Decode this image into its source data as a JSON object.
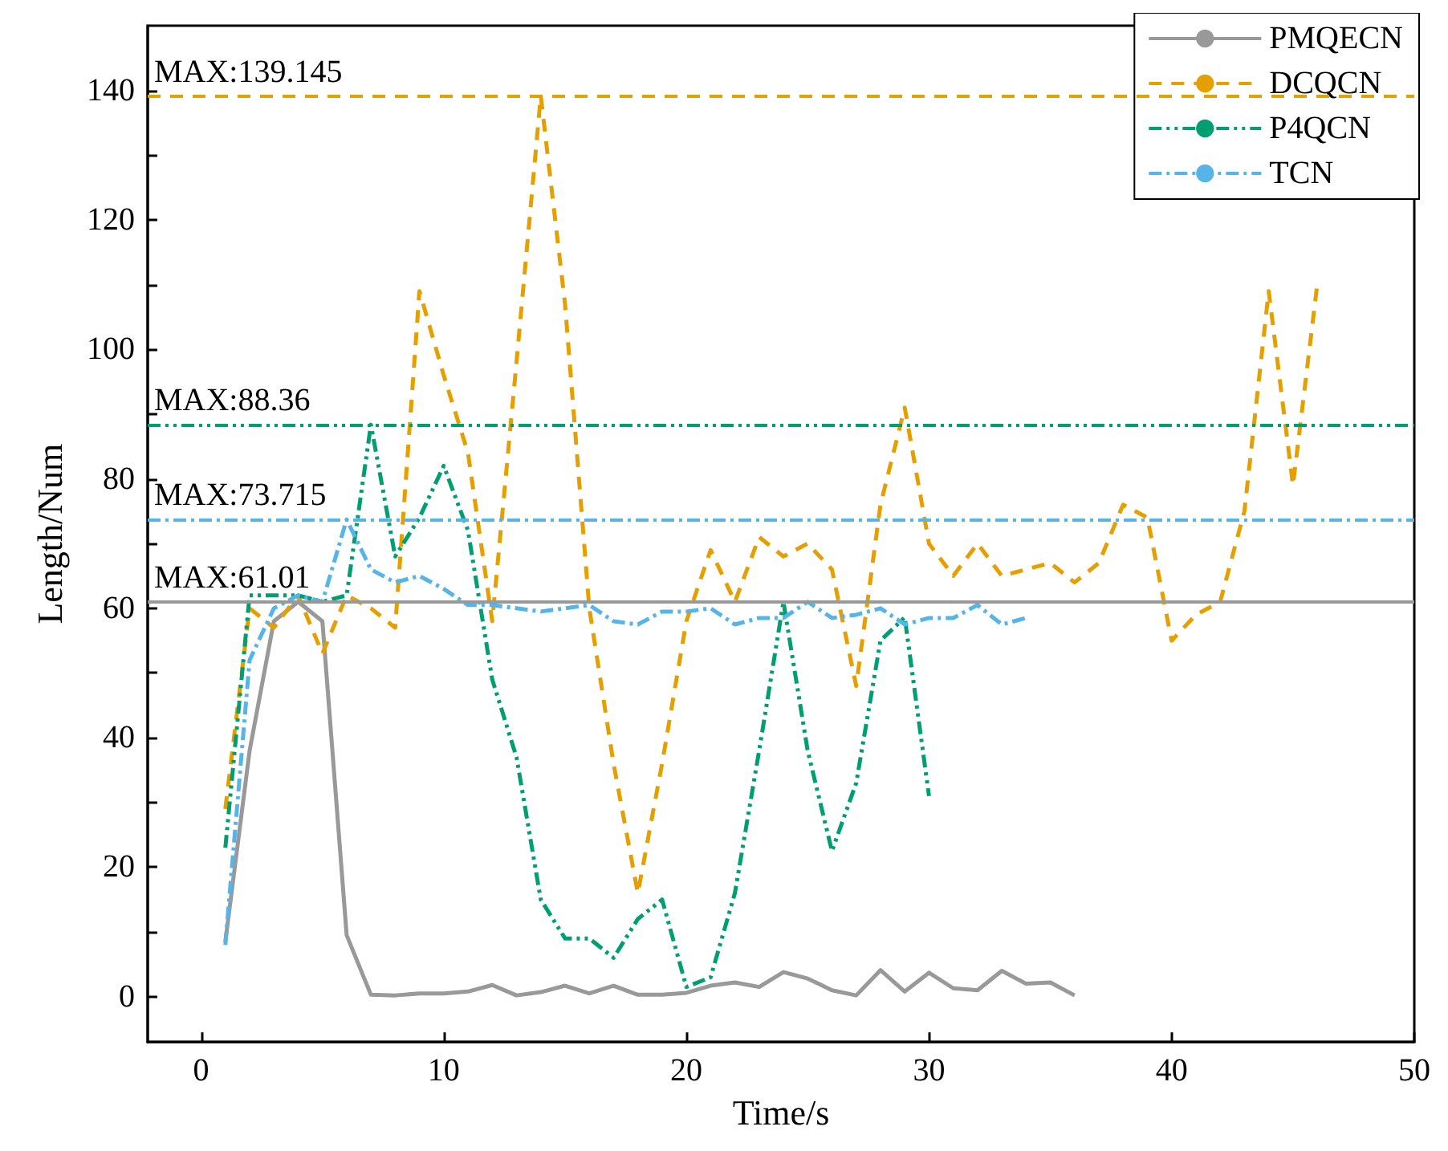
{
  "chart_data": {
    "type": "line",
    "xlabel": "Time/s",
    "ylabel": "Length/Num",
    "xlim": [
      -2.2,
      50
    ],
    "xticks": [
      0,
      10,
      20,
      30,
      40,
      50
    ],
    "ylim": [
      -7,
      150
    ],
    "yticks": [
      0,
      {
        "value": 10,
        "label": null
      },
      20,
      {
        "value": 30,
        "label": null
      },
      40,
      {
        "value": 50,
        "label": null
      },
      60,
      {
        "value": 70,
        "label": null
      },
      80,
      {
        "value": 90,
        "label": null
      },
      100,
      {
        "value": 110,
        "label": null
      },
      120,
      {
        "value": 130,
        "label": null
      },
      140
    ],
    "grid": false,
    "legend": "top right",
    "marker": "none",
    "series": [
      {
        "name": "PMQECN",
        "color": "#999999",
        "line_style": "solid",
        "x": [
          1,
          2,
          3,
          4,
          5,
          6,
          7,
          8,
          9,
          10,
          11,
          12,
          13,
          14,
          15,
          16,
          17,
          18,
          19,
          20,
          21,
          22,
          23,
          24,
          25,
          26,
          27,
          28,
          29,
          30,
          31,
          32,
          33,
          34,
          35,
          36
        ],
        "values": [
          8.5,
          38,
          58,
          61.01,
          58,
          9.5,
          0.3,
          0.2,
          0.5,
          0.5,
          0.8,
          1.8,
          0.2,
          0.7,
          1.7,
          0.5,
          1.7,
          0.3,
          0.3,
          0.6,
          1.7,
          2.2,
          1.5,
          3.8,
          2.8,
          1,
          0.2,
          4.1,
          0.8,
          3.7,
          1.3,
          1,
          4,
          2,
          2.2,
          0.2
        ]
      },
      {
        "name": "DCQCN",
        "color": "#e69f00",
        "line_style": "dashed",
        "x": [
          1,
          2,
          3,
          4,
          5,
          6,
          7,
          8,
          9,
          10,
          11,
          12,
          13,
          14,
          15,
          16,
          17,
          18,
          19,
          20,
          21,
          22,
          23,
          24,
          25,
          26,
          27,
          28,
          29,
          30,
          31,
          32,
          33,
          34,
          35,
          36,
          37,
          38,
          39,
          40,
          41,
          42,
          43,
          44,
          45,
          46
        ],
        "values": [
          29,
          60,
          57,
          62,
          53,
          62,
          60,
          57,
          109,
          96,
          84,
          58,
          98,
          139.145,
          107,
          60,
          36,
          16,
          36,
          58,
          69,
          61,
          71,
          68,
          70,
          66,
          48,
          76,
          91,
          70,
          65,
          70,
          65,
          66,
          67,
          64,
          67,
          76,
          74,
          55,
          59,
          61,
          75,
          109,
          79,
          110
        ]
      },
      {
        "name": "P4QCN",
        "color": "#009e73",
        "line_style": "dashdotdot",
        "x": [
          1,
          2,
          3,
          4,
          5,
          6,
          7,
          8,
          9,
          10,
          11,
          12,
          13,
          14,
          15,
          16,
          17,
          18,
          19,
          20,
          21,
          22,
          23,
          24,
          25,
          26,
          27,
          28,
          29,
          30
        ],
        "values": [
          23,
          62,
          62,
          62,
          61,
          62,
          88.36,
          68,
          74,
          82,
          72,
          49,
          37,
          15,
          9,
          9,
          6,
          12,
          15,
          1.5,
          3,
          16,
          38,
          61,
          38,
          22.5,
          33,
          55,
          58.6,
          31
        ]
      },
      {
        "name": "TCN",
        "color": "#56b4e9",
        "line_style": "dashdot",
        "x": [
          1,
          2,
          3,
          4,
          5,
          6,
          7,
          8,
          9,
          10,
          11,
          12,
          13,
          14,
          15,
          16,
          17,
          18,
          19,
          20,
          21,
          22,
          23,
          24,
          25,
          26,
          27,
          28,
          29,
          30,
          31,
          32,
          33,
          34
        ],
        "values": [
          8,
          52,
          60,
          62,
          61,
          73.715,
          66,
          64,
          65,
          63,
          60.5,
          60.5,
          60,
          59.5,
          60,
          60.5,
          58,
          57.5,
          59.5,
          59.5,
          60,
          57.5,
          58.5,
          58.5,
          61,
          58.5,
          59,
          60,
          57.5,
          58.5,
          58.5,
          60.5,
          57.5,
          58.5
        ]
      }
    ],
    "ref_lines": [
      {
        "axis": "y",
        "value": 139.145,
        "label": "MAX:139.145",
        "color": "#e69f00",
        "line_style": "dashed"
      },
      {
        "axis": "y",
        "value": 88.36,
        "label": "MAX:88.36",
        "color": "#009e73",
        "line_style": "dashdotdot"
      },
      {
        "axis": "y",
        "value": 73.715,
        "label": "MAX:73.715",
        "color": "#56b4e9",
        "line_style": "dashdot"
      },
      {
        "axis": "y",
        "value": 61.01,
        "label": "MAX:61.01",
        "color": "#999999",
        "line_style": "solid"
      }
    ]
  }
}
